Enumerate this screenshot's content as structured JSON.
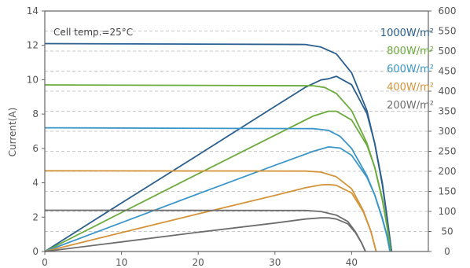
{
  "chart_data": {
    "type": "line",
    "annotation": "Cell temp.=25°C",
    "xlabel": "",
    "ylabel": "Current(A)",
    "y2label": "",
    "xlim": [
      0,
      50
    ],
    "ylim": [
      0,
      14
    ],
    "y2lim": [
      0,
      600
    ],
    "x_ticks": [
      "0",
      "10",
      "20",
      "30",
      "40"
    ],
    "y_ticks": [
      "0",
      "2",
      "4",
      "6",
      "8",
      "10",
      "12",
      "14"
    ],
    "y2_ticks": [
      "0",
      "50",
      "100",
      "150",
      "200",
      "250",
      "300",
      "350",
      "400",
      "450",
      "500",
      "550",
      "600"
    ],
    "grid": "horizontal-dashed",
    "legend_position": "top-right",
    "series": [
      {
        "name": "1000W/m²",
        "color": "#2b5f8e",
        "iv": [
          [
            0,
            12.1
          ],
          [
            34,
            12.05
          ],
          [
            36,
            11.9
          ],
          [
            38,
            11.5
          ],
          [
            40,
            10.4
          ],
          [
            42,
            8.2
          ],
          [
            43,
            6.3
          ],
          [
            44,
            3.9
          ],
          [
            44.6,
            2.0
          ],
          [
            45.2,
            0
          ]
        ],
        "pv": [
          [
            0,
            0
          ],
          [
            10,
            121
          ],
          [
            20,
            241
          ],
          [
            30,
            362
          ],
          [
            34,
            410
          ],
          [
            36,
            428
          ],
          [
            37,
            431
          ],
          [
            38,
            437
          ],
          [
            40,
            416
          ],
          [
            42,
            344
          ],
          [
            43,
            271
          ],
          [
            44,
            172
          ],
          [
            44.6,
            89
          ],
          [
            45.2,
            0
          ]
        ]
      },
      {
        "name": "800W/m²",
        "color": "#6aab3c",
        "iv": [
          [
            0,
            9.7
          ],
          [
            35,
            9.65
          ],
          [
            36.5,
            9.55
          ],
          [
            38,
            9.2
          ],
          [
            40,
            8.2
          ],
          [
            42,
            6.3
          ],
          [
            43,
            4.9
          ],
          [
            44,
            3.0
          ],
          [
            44.6,
            1.5
          ],
          [
            45.1,
            0
          ]
        ],
        "pv": [
          [
            0,
            0
          ],
          [
            10,
            97
          ],
          [
            20,
            194
          ],
          [
            30,
            290
          ],
          [
            35,
            338
          ],
          [
            37,
            350
          ],
          [
            38,
            350
          ],
          [
            40,
            328
          ],
          [
            42,
            265
          ],
          [
            43,
            211
          ],
          [
            44,
            132
          ],
          [
            44.6,
            67
          ],
          [
            45.1,
            0
          ]
        ]
      },
      {
        "name": "600W/m²",
        "color": "#3b96c8",
        "iv": [
          [
            0,
            7.2
          ],
          [
            35,
            7.15
          ],
          [
            37,
            7.05
          ],
          [
            38.5,
            6.7
          ],
          [
            40,
            6.0
          ],
          [
            42,
            4.4
          ],
          [
            43,
            3.3
          ],
          [
            44,
            1.9
          ],
          [
            44.6,
            0.9
          ],
          [
            45.0,
            0
          ]
        ],
        "pv": [
          [
            0,
            0
          ],
          [
            10,
            72
          ],
          [
            20,
            144
          ],
          [
            30,
            215
          ],
          [
            35,
            250
          ],
          [
            37,
            261
          ],
          [
            38.5,
            258
          ],
          [
            40,
            240
          ],
          [
            42,
            185
          ],
          [
            43,
            142
          ],
          [
            44,
            84
          ],
          [
            44.6,
            40
          ],
          [
            45.0,
            0
          ]
        ]
      },
      {
        "name": "400W/m²",
        "color": "#d4943a",
        "iv": [
          [
            0,
            4.7
          ],
          [
            34,
            4.68
          ],
          [
            36,
            4.62
          ],
          [
            38,
            4.35
          ],
          [
            40,
            3.65
          ],
          [
            41.5,
            2.4
          ],
          [
            42.5,
            1.2
          ],
          [
            43.2,
            0
          ]
        ],
        "pv": [
          [
            0,
            0
          ],
          [
            10,
            47
          ],
          [
            20,
            94
          ],
          [
            30,
            140
          ],
          [
            34,
            159
          ],
          [
            36,
            166
          ],
          [
            37,
            167
          ],
          [
            38,
            165
          ],
          [
            40,
            146
          ],
          [
            41.5,
            100
          ],
          [
            42.5,
            51
          ],
          [
            43.2,
            0
          ]
        ]
      },
      {
        "name": "200W/m²",
        "color": "#6e6e6e",
        "iv": [
          [
            0,
            2.4
          ],
          [
            34,
            2.39
          ],
          [
            36,
            2.33
          ],
          [
            38,
            2.12
          ],
          [
            39.5,
            1.75
          ],
          [
            40.5,
            1.15
          ],
          [
            41.3,
            0.5
          ],
          [
            41.8,
            0
          ]
        ],
        "pv": [
          [
            0,
            0
          ],
          [
            10,
            24
          ],
          [
            20,
            48
          ],
          [
            30,
            71
          ],
          [
            34,
            81
          ],
          [
            36,
            84
          ],
          [
            37,
            84
          ],
          [
            38,
            81
          ],
          [
            39.5,
            69
          ],
          [
            40.5,
            47
          ],
          [
            41.3,
            21
          ],
          [
            41.8,
            0
          ]
        ]
      }
    ]
  }
}
